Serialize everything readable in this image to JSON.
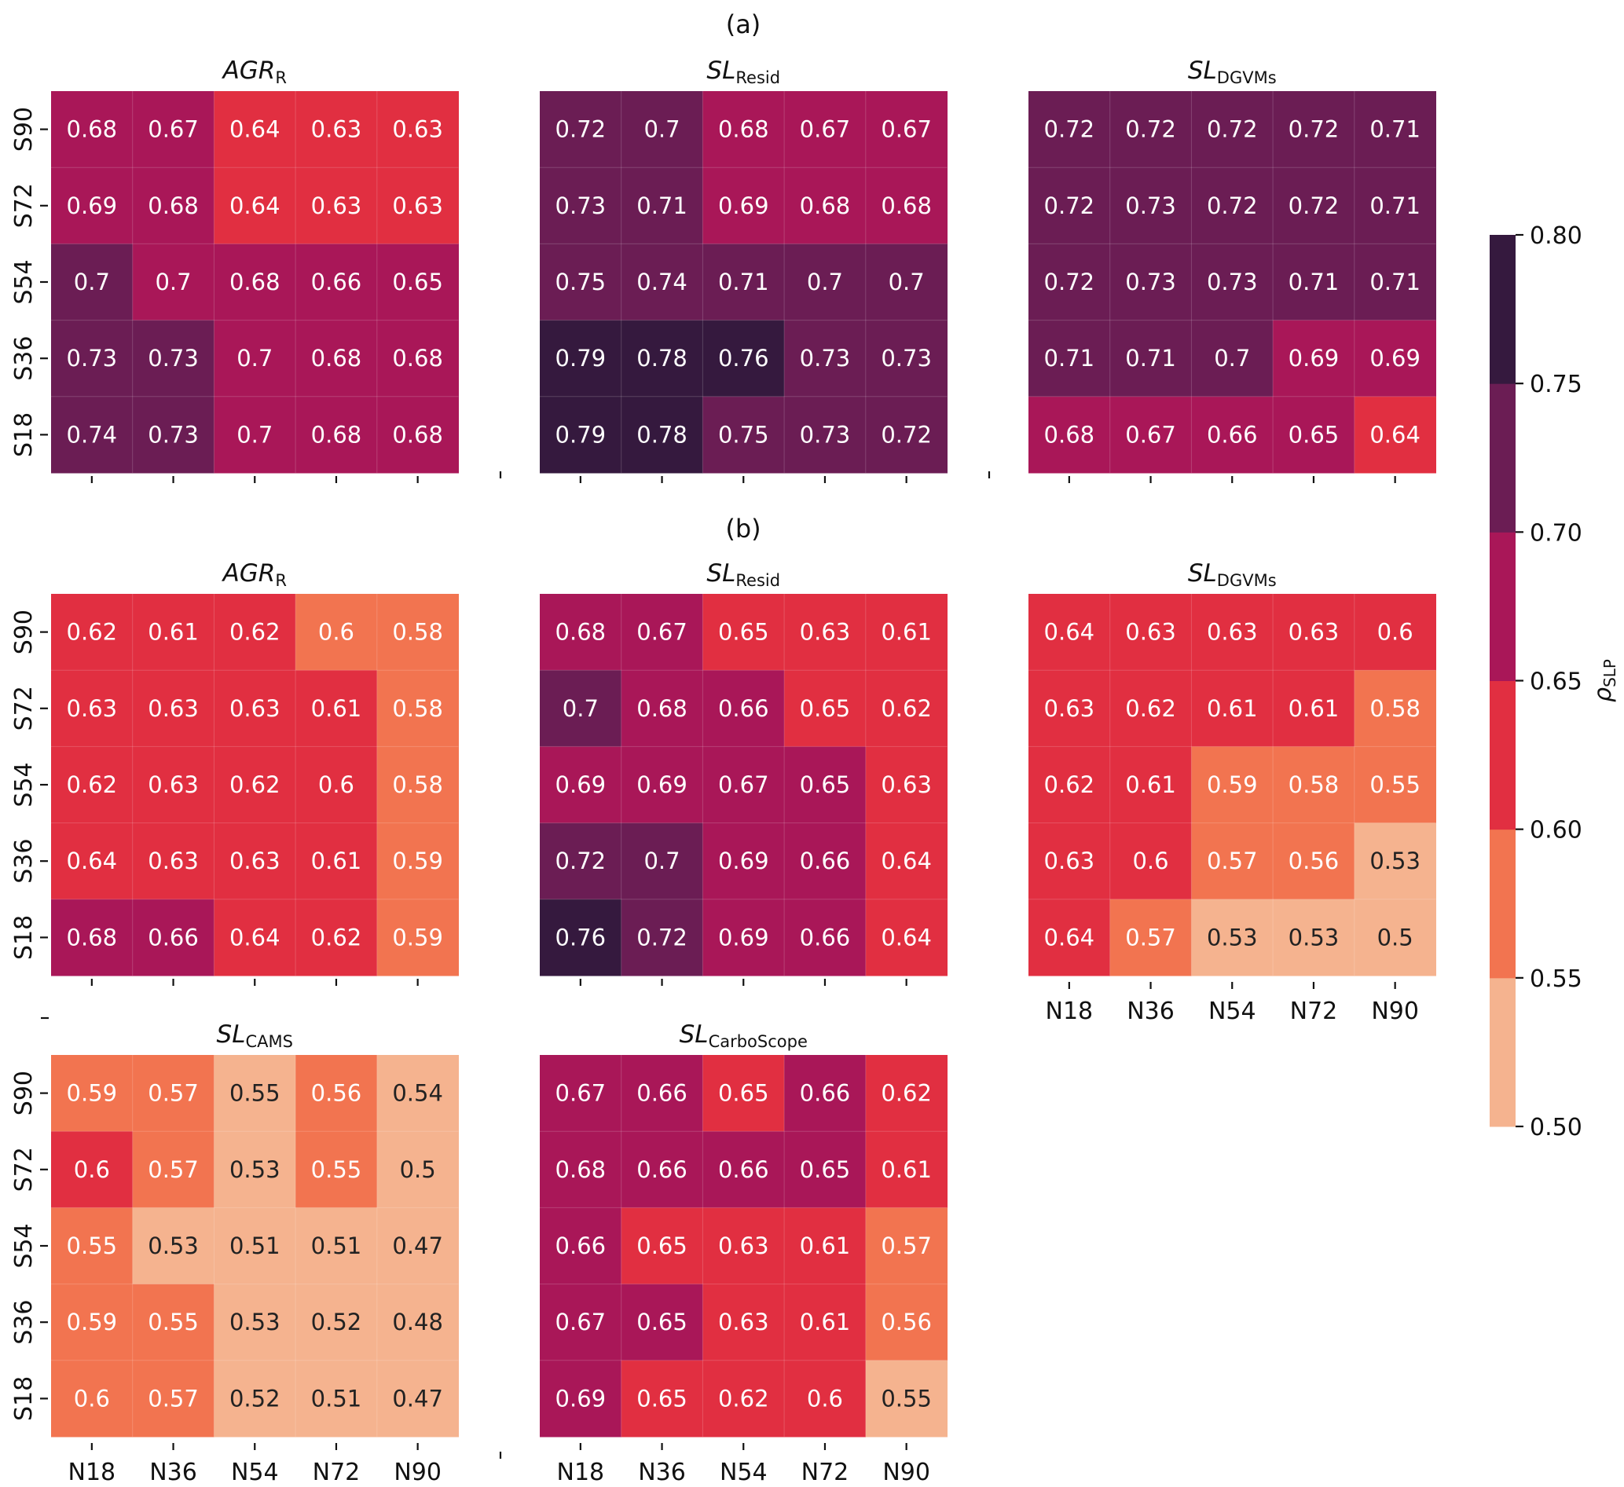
{
  "chart_data": {
    "type": "heatmap",
    "row_labels": [
      "S90",
      "S72",
      "S54",
      "S36",
      "S18"
    ],
    "col_labels": [
      "N18",
      "N36",
      "N54",
      "N72",
      "N90"
    ],
    "colorbar": {
      "label_main": "ρ",
      "label_sub": "SLP",
      "ticks": [
        "0.50",
        "0.55",
        "0.60",
        "0.65",
        "0.70",
        "0.75",
        "0.80"
      ],
      "range": [
        0.5,
        0.8
      ],
      "bin_colors": [
        "#f5b38f",
        "#f27450",
        "#e12f41",
        "#a91758",
        "#6b1d54",
        "#35193e"
      ],
      "bin_text_colors": [
        "#222222",
        "#ffffff",
        "#ffffff",
        "#ffffff",
        "#ffffff",
        "#ffffff"
      ]
    },
    "groups": [
      {
        "label": "(a)",
        "panels": [
          {
            "title_main": "AGR",
            "title_sub": "R",
            "title_italic": true,
            "values": [
              [
                "0.68",
                "0.67",
                "0.64",
                "0.63",
                "0.63"
              ],
              [
                "0.69",
                "0.68",
                "0.64",
                "0.63",
                "0.63"
              ],
              [
                "0.7",
                "0.7",
                "0.68",
                "0.66",
                "0.65"
              ],
              [
                "0.73",
                "0.73",
                "0.7",
                "0.68",
                "0.68"
              ],
              [
                "0.74",
                "0.73",
                "0.7",
                "0.68",
                "0.68"
              ]
            ],
            "bins": [
              [
                3,
                3,
                2,
                2,
                2
              ],
              [
                3,
                3,
                2,
                2,
                2
              ],
              [
                4,
                3,
                3,
                3,
                3
              ],
              [
                4,
                4,
                3,
                3,
                3
              ],
              [
                4,
                4,
                3,
                3,
                3
              ]
            ]
          },
          {
            "title_main": "SL",
            "title_sub": "Resid",
            "values": [
              [
                "0.72",
                "0.7",
                "0.68",
                "0.67",
                "0.67"
              ],
              [
                "0.73",
                "0.71",
                "0.69",
                "0.68",
                "0.68"
              ],
              [
                "0.75",
                "0.74",
                "0.71",
                "0.7",
                "0.7"
              ],
              [
                "0.79",
                "0.78",
                "0.76",
                "0.73",
                "0.73"
              ],
              [
                "0.79",
                "0.78",
                "0.75",
                "0.73",
                "0.72"
              ]
            ],
            "bins": [
              [
                4,
                4,
                3,
                3,
                3
              ],
              [
                4,
                4,
                3,
                3,
                3
              ],
              [
                4,
                4,
                4,
                4,
                4
              ],
              [
                5,
                5,
                5,
                4,
                4
              ],
              [
                5,
                5,
                4,
                4,
                4
              ]
            ]
          },
          {
            "title_main": "SL",
            "title_sub": "DGVMs",
            "values": [
              [
                "0.72",
                "0.72",
                "0.72",
                "0.72",
                "0.71"
              ],
              [
                "0.72",
                "0.73",
                "0.72",
                "0.72",
                "0.71"
              ],
              [
                "0.72",
                "0.73",
                "0.73",
                "0.71",
                "0.71"
              ],
              [
                "0.71",
                "0.71",
                "0.7",
                "0.69",
                "0.69"
              ],
              [
                "0.68",
                "0.67",
                "0.66",
                "0.65",
                "0.64"
              ]
            ],
            "bins": [
              [
                4,
                4,
                4,
                4,
                4
              ],
              [
                4,
                4,
                4,
                4,
                4
              ],
              [
                4,
                4,
                4,
                4,
                4
              ],
              [
                4,
                4,
                4,
                3,
                3
              ],
              [
                3,
                3,
                3,
                3,
                2
              ]
            ]
          }
        ]
      },
      {
        "label": "(b)",
        "panels": [
          {
            "title_main": "AGR",
            "title_sub": "R",
            "values": [
              [
                "0.62",
                "0.61",
                "0.62",
                "0.6",
                "0.58"
              ],
              [
                "0.63",
                "0.63",
                "0.63",
                "0.61",
                "0.58"
              ],
              [
                "0.62",
                "0.63",
                "0.62",
                "0.6",
                "0.58"
              ],
              [
                "0.64",
                "0.63",
                "0.63",
                "0.61",
                "0.59"
              ],
              [
                "0.68",
                "0.66",
                "0.64",
                "0.62",
                "0.59"
              ]
            ],
            "bins": [
              [
                2,
                2,
                2,
                1,
                1
              ],
              [
                2,
                2,
                2,
                2,
                1
              ],
              [
                2,
                2,
                2,
                2,
                1
              ],
              [
                2,
                2,
                2,
                2,
                1
              ],
              [
                3,
                3,
                2,
                2,
                1
              ]
            ]
          },
          {
            "title_main": "SL",
            "title_sub": "Resid",
            "values": [
              [
                "0.68",
                "0.67",
                "0.65",
                "0.63",
                "0.61"
              ],
              [
                "0.7",
                "0.68",
                "0.66",
                "0.65",
                "0.62"
              ],
              [
                "0.69",
                "0.69",
                "0.67",
                "0.65",
                "0.63"
              ],
              [
                "0.72",
                "0.7",
                "0.69",
                "0.66",
                "0.64"
              ],
              [
                "0.76",
                "0.72",
                "0.69",
                "0.66",
                "0.64"
              ]
            ],
            "bins": [
              [
                3,
                3,
                2,
                2,
                2
              ],
              [
                4,
                3,
                3,
                2,
                2
              ],
              [
                3,
                3,
                3,
                3,
                2
              ],
              [
                4,
                4,
                3,
                3,
                2
              ],
              [
                5,
                4,
                3,
                3,
                2
              ]
            ]
          },
          {
            "title_main": "SL",
            "title_sub": "DGVMs",
            "values": [
              [
                "0.64",
                "0.63",
                "0.63",
                "0.63",
                "0.6"
              ],
              [
                "0.63",
                "0.62",
                "0.61",
                "0.61",
                "0.58"
              ],
              [
                "0.62",
                "0.61",
                "0.59",
                "0.58",
                "0.55"
              ],
              [
                "0.63",
                "0.6",
                "0.57",
                "0.56",
                "0.53"
              ],
              [
                "0.64",
                "0.57",
                "0.53",
                "0.53",
                "0.5"
              ]
            ],
            "bins": [
              [
                2,
                2,
                2,
                2,
                2
              ],
              [
                2,
                2,
                2,
                2,
                1
              ],
              [
                2,
                2,
                1,
                1,
                1
              ],
              [
                2,
                2,
                1,
                1,
                0
              ],
              [
                2,
                1,
                0,
                0,
                0
              ]
            ]
          },
          {
            "title_main": "SL",
            "title_sub": "CAMS",
            "values": [
              [
                "0.59",
                "0.57",
                "0.55",
                "0.56",
                "0.54"
              ],
              [
                "0.6",
                "0.57",
                "0.53",
                "0.55",
                "0.5"
              ],
              [
                "0.55",
                "0.53",
                "0.51",
                "0.51",
                "0.47"
              ],
              [
                "0.59",
                "0.55",
                "0.53",
                "0.52",
                "0.48"
              ],
              [
                "0.6",
                "0.57",
                "0.52",
                "0.51",
                "0.47"
              ]
            ],
            "bins": [
              [
                1,
                1,
                0,
                1,
                0
              ],
              [
                2,
                1,
                0,
                1,
                0
              ],
              [
                1,
                0,
                0,
                0,
                0
              ],
              [
                1,
                1,
                0,
                0,
                0
              ],
              [
                1,
                1,
                0,
                0,
                0
              ]
            ]
          },
          {
            "title_main": "SL",
            "title_sub": "CarboScope",
            "values": [
              [
                "0.67",
                "0.66",
                "0.65",
                "0.66",
                "0.62"
              ],
              [
                "0.68",
                "0.66",
                "0.66",
                "0.65",
                "0.61"
              ],
              [
                "0.66",
                "0.65",
                "0.63",
                "0.61",
                "0.57"
              ],
              [
                "0.67",
                "0.65",
                "0.63",
                "0.61",
                "0.56"
              ],
              [
                "0.69",
                "0.65",
                "0.62",
                "0.6",
                "0.55"
              ]
            ],
            "bins": [
              [
                3,
                3,
                2,
                3,
                2
              ],
              [
                3,
                3,
                3,
                3,
                2
              ],
              [
                3,
                2,
                2,
                2,
                1
              ],
              [
                3,
                3,
                2,
                2,
                1
              ],
              [
                3,
                2,
                2,
                2,
                0
              ]
            ]
          }
        ]
      }
    ]
  }
}
